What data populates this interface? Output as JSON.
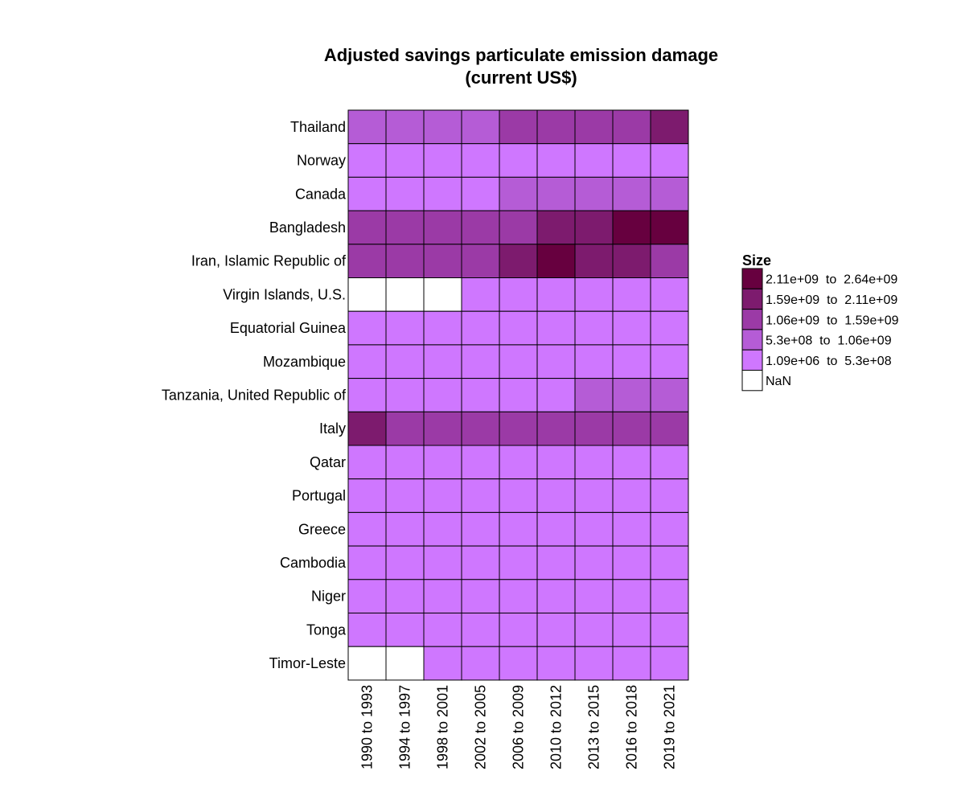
{
  "chart_data": {
    "type": "heatmap",
    "title": [
      "Adjusted savings particulate emission damage",
      "(current US$)"
    ],
    "rows": [
      "Thailand",
      "Norway",
      "Canada",
      "Bangladesh",
      "Iran, Islamic Republic of",
      "Virgin Islands, U.S.",
      "Equatorial Guinea",
      "Mozambique",
      "Tanzania, United Republic of",
      "Italy",
      "Qatar",
      "Portugal",
      "Greece",
      "Cambodia",
      "Niger",
      "Tonga",
      "Timor-Leste"
    ],
    "columns": [
      "1990 to 1993",
      "1994 to 1997",
      "1998 to 2001",
      "2002 to 2005",
      "2006 to 2009",
      "2010 to 2012",
      "2013 to 2015",
      "2016 to 2018",
      "2019 to 2021"
    ],
    "bins": [
      {
        "label": "2.11e+09  to  2.64e+09",
        "color": "#67003f"
      },
      {
        "label": "1.59e+09  to  2.11e+09",
        "color": "#7d1b6e"
      },
      {
        "label": "1.06e+09  to  1.59e+09",
        "color": "#9b3aa6"
      },
      {
        "label": "5.3e+08  to  1.06e+09",
        "color": "#b55cd6"
      },
      {
        "label": "1.09e+06  to  5.3e+08",
        "color": "#cf77ff"
      },
      {
        "label": "NaN",
        "color": "#ffffff"
      }
    ],
    "values": [
      [
        3,
        3,
        3,
        3,
        2,
        2,
        2,
        2,
        1
      ],
      [
        4,
        4,
        4,
        4,
        4,
        4,
        4,
        4,
        4
      ],
      [
        4,
        4,
        4,
        4,
        3,
        3,
        3,
        3,
        3
      ],
      [
        2,
        2,
        2,
        2,
        2,
        1,
        1,
        0,
        0
      ],
      [
        2,
        2,
        2,
        2,
        1,
        0,
        1,
        1,
        2
      ],
      [
        5,
        5,
        5,
        4,
        4,
        4,
        4,
        4,
        4
      ],
      [
        4,
        4,
        4,
        4,
        4,
        4,
        4,
        4,
        4
      ],
      [
        4,
        4,
        4,
        4,
        4,
        4,
        4,
        4,
        4
      ],
      [
        4,
        4,
        4,
        4,
        4,
        4,
        3,
        3,
        3
      ],
      [
        1,
        2,
        2,
        2,
        2,
        2,
        2,
        2,
        2
      ],
      [
        4,
        4,
        4,
        4,
        4,
        4,
        4,
        4,
        4
      ],
      [
        4,
        4,
        4,
        4,
        4,
        4,
        4,
        4,
        4
      ],
      [
        4,
        4,
        4,
        4,
        4,
        4,
        4,
        4,
        4
      ],
      [
        4,
        4,
        4,
        4,
        4,
        4,
        4,
        4,
        4
      ],
      [
        4,
        4,
        4,
        4,
        4,
        4,
        4,
        4,
        4
      ],
      [
        4,
        4,
        4,
        4,
        4,
        4,
        4,
        4,
        4
      ],
      [
        5,
        5,
        4,
        4,
        4,
        4,
        4,
        4,
        4
      ]
    ],
    "legend": {
      "title": "Size",
      "position": "right"
    }
  }
}
